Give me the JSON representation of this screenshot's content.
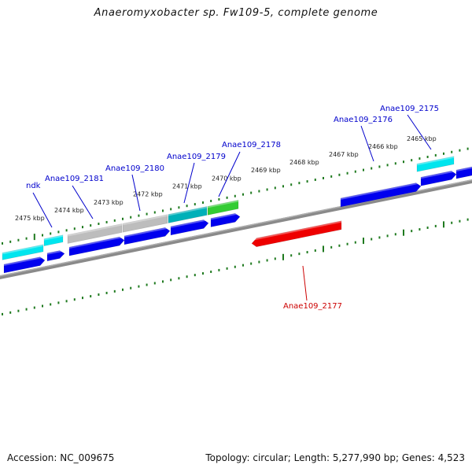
{
  "title": "Anaeromyxobacter sp. Fw109-5, complete genome",
  "footer": {
    "accession": "Accession: NC_009675",
    "summary": "Topology: circular; Length: 5,277,990 bp; Genes: 4,523"
  },
  "colors": {
    "backbone": "#808080",
    "ruler_ticks": "#1f7a1f",
    "cds_forward": "#0000ee",
    "cds_reverse": "#0000ee",
    "gene_cyan": "#00e5ee",
    "gene_teal": "#00b0b8",
    "gene_gray": "#bdbdbd",
    "gene_green": "#33cc33",
    "highlight": "#ee0000",
    "label_blue": "#0000cc",
    "label_red": "#cc0000"
  },
  "ruler": {
    "units": "kbp",
    "labels": [
      "2465 kbp",
      "2466 kbp",
      "2467 kbp",
      "2468 kbp",
      "2469 kbp",
      "2470 kbp",
      "2471 kbp",
      "2472 kbp",
      "2473 kbp",
      "2474 kbp",
      "2475 kbp"
    ]
  },
  "genes": [
    {
      "label": "Anae109_2175",
      "color": "label_blue"
    },
    {
      "label": "Anae109_2176",
      "color": "label_blue"
    },
    {
      "label": "Anae109_2178",
      "color": "label_blue"
    },
    {
      "label": "Anae109_2179",
      "color": "label_blue"
    },
    {
      "label": "Anae109_2180",
      "color": "label_blue"
    },
    {
      "label": "Anae109_2181",
      "color": "label_blue"
    },
    {
      "label": "ndk",
      "color": "label_blue"
    },
    {
      "label": "Anae109_2177",
      "color": "label_red"
    }
  ]
}
